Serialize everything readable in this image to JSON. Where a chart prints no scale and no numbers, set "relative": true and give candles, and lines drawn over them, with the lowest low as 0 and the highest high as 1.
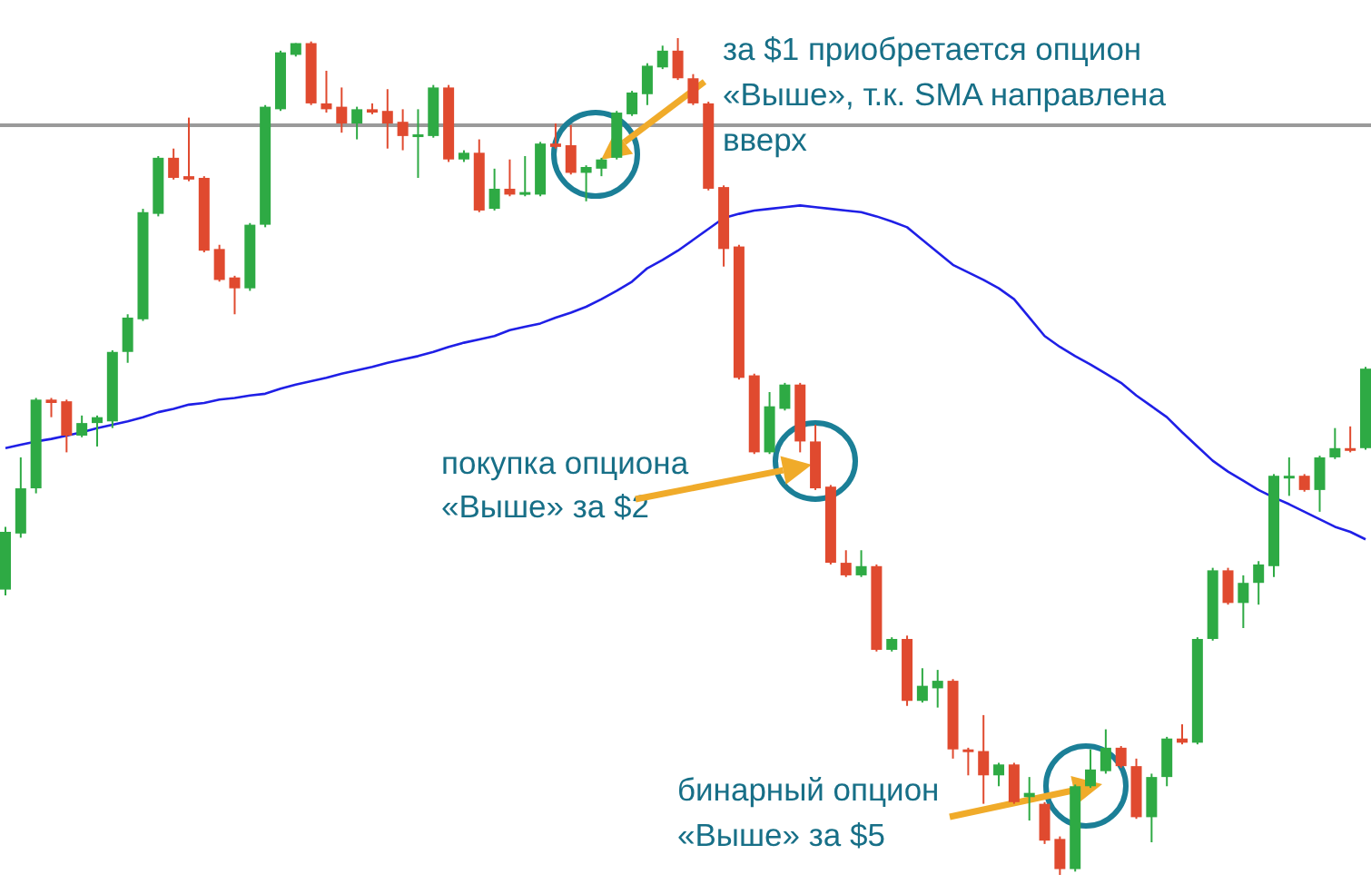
{
  "chart_data": {
    "type": "candlestick",
    "relative": true,
    "categories": [
      null,
      null,
      null,
      null,
      null,
      null,
      null,
      null,
      null,
      null,
      null,
      null,
      null,
      null,
      null,
      null,
      null,
      null,
      null,
      null,
      null,
      null,
      null,
      null,
      null,
      null,
      null,
      null,
      null,
      null,
      null,
      null,
      null,
      null,
      null,
      null,
      null,
      null,
      null,
      null,
      null,
      null,
      null,
      null,
      null,
      null,
      null,
      null,
      null,
      null,
      null,
      null,
      null,
      null,
      null,
      null,
      null,
      null,
      null,
      null,
      null,
      null,
      null,
      null,
      null,
      null,
      null,
      null,
      null,
      null,
      null,
      null,
      null,
      null,
      null,
      null,
      null,
      null,
      null,
      null,
      null,
      null,
      null,
      null,
      null,
      null,
      null,
      null,
      null,
      null
    ],
    "ohlc": [
      [
        0.341,
        0.416,
        0.334,
        0.41
      ],
      [
        0.408,
        0.499,
        0.403,
        0.462
      ],
      [
        0.462,
        0.57,
        0.456,
        0.568
      ],
      [
        0.568,
        0.57,
        0.547,
        0.564
      ],
      [
        0.566,
        0.568,
        0.505,
        0.525
      ],
      [
        0.525,
        0.549,
        0.523,
        0.54
      ],
      [
        0.54,
        0.549,
        0.512,
        0.547
      ],
      [
        0.542,
        0.627,
        0.534,
        0.625
      ],
      [
        0.625,
        0.67,
        0.612,
        0.666
      ],
      [
        0.664,
        0.796,
        0.662,
        0.792
      ],
      [
        0.79,
        0.859,
        0.787,
        0.857
      ],
      [
        0.857,
        0.868,
        0.831,
        0.833
      ],
      [
        0.835,
        0.905,
        0.829,
        0.831
      ],
      [
        0.833,
        0.835,
        0.744,
        0.746
      ],
      [
        0.748,
        0.753,
        0.709,
        0.711
      ],
      [
        0.714,
        0.716,
        0.67,
        0.701
      ],
      [
        0.701,
        0.779,
        0.698,
        0.777
      ],
      [
        0.777,
        0.92,
        0.774,
        0.918
      ],
      [
        0.915,
        0.985,
        0.913,
        0.983
      ],
      [
        0.98,
        0.994,
        0.978,
        0.994
      ],
      [
        0.994,
        0.996,
        0.92,
        0.922
      ],
      [
        0.922,
        0.961,
        0.911,
        0.915
      ],
      [
        0.918,
        0.941,
        0.887,
        0.898
      ],
      [
        0.898,
        0.918,
        0.879,
        0.915
      ],
      [
        0.915,
        0.922,
        0.909,
        0.911
      ],
      [
        0.913,
        0.939,
        0.868,
        0.898
      ],
      [
        0.9,
        0.915,
        0.866,
        0.883
      ],
      [
        0.883,
        0.915,
        0.833,
        0.885
      ],
      [
        0.883,
        0.944,
        0.881,
        0.941
      ],
      [
        0.941,
        0.944,
        0.852,
        0.855
      ],
      [
        0.855,
        0.866,
        0.852,
        0.863
      ],
      [
        0.863,
        0.879,
        0.792,
        0.794
      ],
      [
        0.796,
        0.844,
        0.794,
        0.82
      ],
      [
        0.82,
        0.855,
        0.811,
        0.813
      ],
      [
        0.813,
        0.859,
        0.811,
        0.816
      ],
      [
        0.813,
        0.876,
        0.811,
        0.874
      ],
      [
        0.874,
        0.898,
        0.868,
        0.87
      ],
      [
        0.872,
        0.896,
        0.837,
        0.839
      ],
      [
        0.839,
        0.848,
        0.805,
        0.846
      ],
      [
        0.844,
        0.857,
        0.835,
        0.855
      ],
      [
        0.857,
        0.913,
        0.855,
        0.911
      ],
      [
        0.909,
        0.937,
        0.907,
        0.935
      ],
      [
        0.933,
        0.97,
        0.92,
        0.967
      ],
      [
        0.965,
        0.991,
        0.963,
        0.985
      ],
      [
        0.985,
        1,
        0.95,
        0.952
      ],
      [
        0.952,
        0.957,
        0.92,
        0.922
      ],
      [
        0.922,
        0.924,
        0.818,
        0.82
      ],
      [
        0.822,
        0.824,
        0.727,
        0.748
      ],
      [
        0.751,
        0.753,
        0.592,
        0.594
      ],
      [
        0.597,
        0.599,
        0.503,
        0.505
      ],
      [
        0.505,
        0.577,
        0.503,
        0.56
      ],
      [
        0.557,
        0.588,
        0.555,
        0.586
      ],
      [
        0.586,
        0.588,
        0.505,
        0.518
      ],
      [
        0.518,
        0.538,
        0.46,
        0.462
      ],
      [
        0.464,
        0.466,
        0.371,
        0.373
      ],
      [
        0.373,
        0.388,
        0.356,
        0.358
      ],
      [
        0.358,
        0.388,
        0.356,
        0.369
      ],
      [
        0.369,
        0.371,
        0.267,
        0.269
      ],
      [
        0.269,
        0.284,
        0.267,
        0.282
      ],
      [
        0.282,
        0.286,
        0.202,
        0.208
      ],
      [
        0.208,
        0.247,
        0.206,
        0.226
      ],
      [
        0.223,
        0.245,
        0.2,
        0.232
      ],
      [
        0.232,
        0.234,
        0.139,
        0.15
      ],
      [
        0.15,
        0.152,
        0.119,
        0.148
      ],
      [
        0.148,
        0.191,
        0.085,
        0.119
      ],
      [
        0.119,
        0.134,
        0.106,
        0.132
      ],
      [
        0.132,
        0.134,
        0.085,
        0.087
      ],
      [
        0.093,
        0.117,
        0.065,
        0.098
      ],
      [
        0.085,
        0.087,
        0.037,
        0.041
      ],
      [
        0.043,
        0.046,
        0,
        0.007
      ],
      [
        0.007,
        0.108,
        0.004,
        0.106
      ],
      [
        0.106,
        0.15,
        0.104,
        0.126
      ],
      [
        0.124,
        0.174,
        0.121,
        0.152
      ],
      [
        0.152,
        0.154,
        0.128,
        0.13
      ],
      [
        0.13,
        0.139,
        0.067,
        0.069
      ],
      [
        0.069,
        0.121,
        0.039,
        0.117
      ],
      [
        0.117,
        0.165,
        0.106,
        0.163
      ],
      [
        0.163,
        0.18,
        0.156,
        0.158
      ],
      [
        0.158,
        0.284,
        0.156,
        0.282
      ],
      [
        0.282,
        0.367,
        0.28,
        0.364
      ],
      [
        0.364,
        0.367,
        0.323,
        0.325
      ],
      [
        0.325,
        0.358,
        0.295,
        0.349
      ],
      [
        0.349,
        0.375,
        0.323,
        0.371
      ],
      [
        0.369,
        0.479,
        0.356,
        0.477
      ],
      [
        0.475,
        0.499,
        0.453,
        0.477
      ],
      [
        0.477,
        0.479,
        0.458,
        0.46
      ],
      [
        0.46,
        0.501,
        0.434,
        0.499
      ],
      [
        0.499,
        0.534,
        0.497,
        0.51
      ],
      [
        0.51,
        0.536,
        0.505,
        0.508
      ],
      [
        0.51,
        0.607,
        0.508,
        0.605
      ]
    ],
    "colors": [
      "#2eaa44",
      "#2eaa44",
      "#2eaa44",
      "#e04a2f",
      "#e04a2f",
      "#2eaa44",
      "#2eaa44",
      "#2eaa44",
      "#2eaa44",
      "#2eaa44",
      "#2eaa44",
      "#e04a2f",
      "#e04a2f",
      "#e04a2f",
      "#e04a2f",
      "#e04a2f",
      "#2eaa44",
      "#2eaa44",
      "#2eaa44",
      "#2eaa44",
      "#e04a2f",
      "#e04a2f",
      "#e04a2f",
      "#2eaa44",
      "#e04a2f",
      "#e04a2f",
      "#e04a2f",
      "#2eaa44",
      "#2eaa44",
      "#e04a2f",
      "#2eaa44",
      "#e04a2f",
      "#2eaa44",
      "#e04a2f",
      "#2eaa44",
      "#2eaa44",
      "#e04a2f",
      "#e04a2f",
      "#2eaa44",
      "#2eaa44",
      "#2eaa44",
      "#2eaa44",
      "#2eaa44",
      "#2eaa44",
      "#e04a2f",
      "#e04a2f",
      "#e04a2f",
      "#e04a2f",
      "#e04a2f",
      "#e04a2f",
      "#2eaa44",
      "#2eaa44",
      "#e04a2f",
      "#e04a2f",
      "#e04a2f",
      "#e04a2f",
      "#2eaa44",
      "#e04a2f",
      "#2eaa44",
      "#e04a2f",
      "#2eaa44",
      "#2eaa44",
      "#e04a2f",
      "#e04a2f",
      "#e04a2f",
      "#2eaa44",
      "#e04a2f",
      "#2eaa44",
      "#e04a2f",
      "#e04a2f",
      "#2eaa44",
      "#2eaa44",
      "#2eaa44",
      "#e04a2f",
      "#e04a2f",
      "#2eaa44",
      "#2eaa44",
      "#e04a2f",
      "#2eaa44",
      "#2eaa44",
      "#e04a2f",
      "#2eaa44",
      "#2eaa44",
      "#2eaa44",
      "#2eaa44",
      "#e04a2f",
      "#2eaa44",
      "#2eaa44",
      "#e04a2f",
      "#2eaa44"
    ],
    "series": [
      {
        "type": "line",
        "color": "#1f1fe6",
        "values": [
          0.51,
          0.514,
          0.518,
          0.521,
          0.525,
          0.529,
          0.534,
          0.538,
          0.542,
          0.547,
          0.553,
          0.557,
          0.562,
          0.564,
          0.568,
          0.57,
          0.573,
          0.575,
          0.581,
          0.586,
          0.59,
          0.594,
          0.599,
          0.603,
          0.607,
          0.612,
          0.616,
          0.62,
          0.625,
          0.631,
          0.636,
          0.64,
          0.644,
          0.651,
          0.655,
          0.659,
          0.666,
          0.672,
          0.679,
          0.688,
          0.698,
          0.709,
          0.725,
          0.735,
          0.746,
          0.759,
          0.772,
          0.785,
          0.79,
          0.794,
          0.796,
          0.798,
          0.8,
          0.798,
          0.796,
          0.794,
          0.792,
          0.787,
          0.781,
          0.774,
          0.759,
          0.744,
          0.729,
          0.72,
          0.711,
          0.701,
          0.688,
          0.666,
          0.644,
          0.631,
          0.62,
          0.61,
          0.599,
          0.588,
          0.573,
          0.56,
          0.547,
          0.529,
          0.512,
          0.495,
          0.482,
          0.471,
          0.46,
          0.451,
          0.443,
          0.434,
          0.425,
          0.416,
          0.41,
          0.401
        ]
      }
    ],
    "ref_lines": [
      {
        "axis": "y",
        "value": 0.896,
        "label": null,
        "color": "#9a9a9a"
      }
    ],
    "annotations": [
      "за $1 приобретается опцион\n«Выше», т.к. SMA направлена\nвверх",
      "покупка опциона\n«Выше» за $2",
      "бинарный опцион\n«Выше» за $5"
    ]
  }
}
